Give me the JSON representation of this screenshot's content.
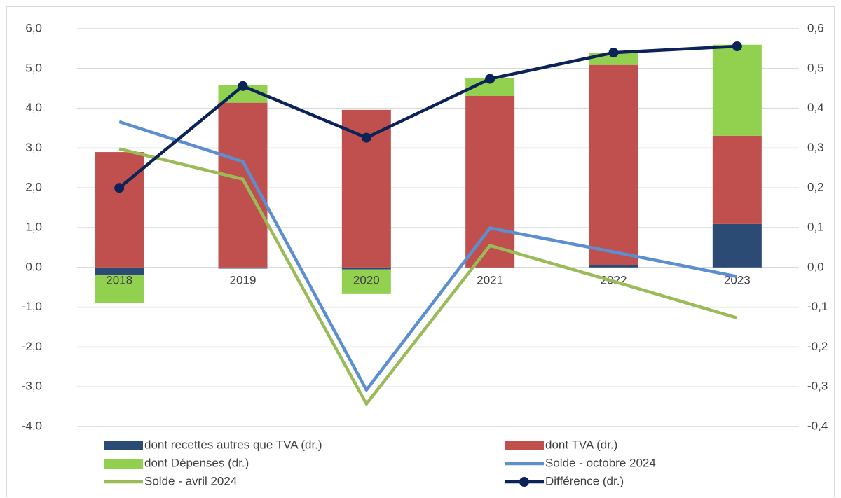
{
  "chart_data": {
    "type": "bar-line",
    "categories": [
      "2018",
      "2019",
      "2020",
      "2021",
      "2022",
      "2023"
    ],
    "series": [
      {
        "name": "dont recettes autres que TVA (dr.)",
        "type": "bar",
        "axis": "y2",
        "color": "#2b4b75",
        "values": [
          -0.02,
          -0.003,
          -0.005,
          -0.002,
          0.006,
          0.109
        ]
      },
      {
        "name": "dont TVA (dr.)",
        "type": "bar",
        "axis": "y2",
        "color": "#c0504d",
        "values": [
          0.29,
          0.414,
          0.396,
          0.431,
          0.503,
          0.222
        ]
      },
      {
        "name": "dont Dépenses (dr.)",
        "type": "bar",
        "axis": "y2",
        "color": "#92d050",
        "values": [
          -0.07,
          0.044,
          -0.062,
          0.044,
          0.031,
          0.229
        ]
      },
      {
        "name": "Solde - octobre 2024",
        "type": "line",
        "color": "#5b8fd0",
        "values": [
          3.66,
          2.66,
          -3.08,
          0.99,
          0.39,
          -0.23
        ]
      },
      {
        "name": "Solde - avril 2024",
        "type": "line",
        "color": "#9bbb59",
        "values": [
          2.98,
          2.22,
          -3.43,
          0.55,
          -0.35,
          -1.27
        ]
      },
      {
        "name": "Différence (dr.)",
        "type": "line",
        "axis": "y2",
        "color": "#0c2358",
        "marker": true,
        "values": [
          0.2,
          0.456,
          0.326,
          0.474,
          0.54,
          0.556
        ]
      }
    ],
    "ylim": [
      -4,
      6
    ],
    "yticks": [
      {
        "value": -4,
        "label": "-4,0"
      },
      {
        "value": -3,
        "label": "-3,0"
      },
      {
        "value": -2,
        "label": "-2,0"
      },
      {
        "value": -1,
        "label": "-1,0"
      },
      {
        "value": 0,
        "label": "0,0"
      },
      {
        "value": 1,
        "label": "1,0"
      },
      {
        "value": 2,
        "label": "2,0"
      },
      {
        "value": 3,
        "label": "3,0"
      },
      {
        "value": 4,
        "label": "4,0"
      },
      {
        "value": 5,
        "label": "5,0"
      },
      {
        "value": 6,
        "label": "6,0"
      }
    ],
    "y2lim": [
      -0.4,
      0.6
    ],
    "y2ticks": [
      {
        "value": -0.4,
        "label": "-0,4"
      },
      {
        "value": -0.3,
        "label": "-0,3"
      },
      {
        "value": -0.2,
        "label": "-0,2"
      },
      {
        "value": -0.1,
        "label": "-0,1"
      },
      {
        "value": 0,
        "label": "0,0"
      },
      {
        "value": 0.1,
        "label": "0,1"
      },
      {
        "value": 0.2,
        "label": "0,2"
      },
      {
        "value": 0.3,
        "label": "0,3"
      },
      {
        "value": 0.4,
        "label": "0,4"
      },
      {
        "value": 0.5,
        "label": "0,5"
      },
      {
        "value": 0.6,
        "label": "0,6"
      }
    ],
    "grid": true,
    "legend": "bottom"
  }
}
